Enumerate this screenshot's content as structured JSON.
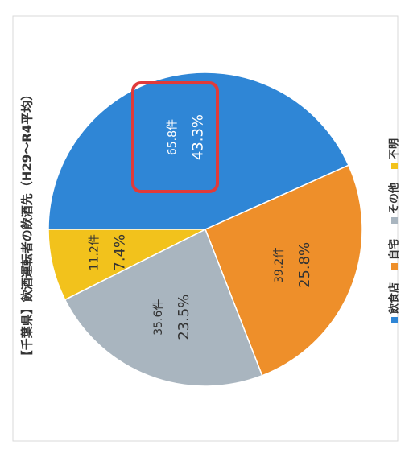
{
  "chart_data": {
    "type": "pie",
    "title": "【千葉県】飲酒運転者の飲酒先（H29～R4平均）",
    "categories": [
      "飲食店",
      "自宅",
      "その他",
      "不明"
    ],
    "values": [
      43.3,
      25.8,
      23.5,
      7.4
    ],
    "value_labels": [
      "43.3%",
      "25.8%",
      "23.5%",
      "7.4%"
    ],
    "count_labels": [
      "65.8件",
      "39.2件",
      "35.6件",
      "11.2件"
    ],
    "colors": [
      "#2f86d6",
      "#ee8f2a",
      "#a9b5bf",
      "#f2c21c"
    ],
    "legend": "bottom"
  }
}
